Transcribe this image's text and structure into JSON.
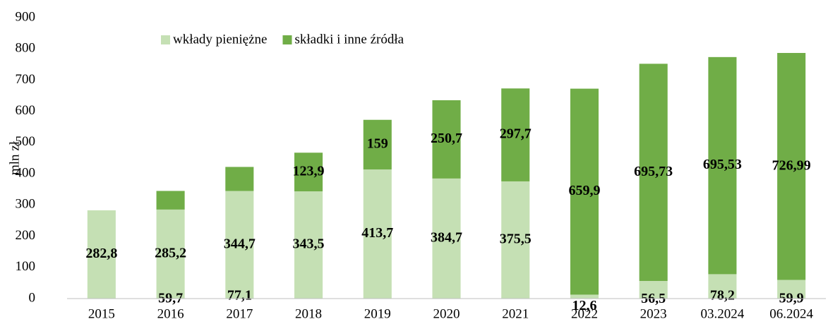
{
  "chart_data": {
    "type": "stacked_bar",
    "y_label": "mln zł",
    "categories": [
      "2015",
      "2016",
      "2017",
      "2018",
      "2019",
      "2020",
      "2021",
      "2022",
      "2023",
      "03.2024",
      "06.2024"
    ],
    "series": [
      {
        "name": "wkłady pieniężne",
        "color": "#c5e0b4",
        "values": [
          282.8,
          285.2,
          344.7,
          343.5,
          413.7,
          384.7,
          375.5,
          12.6,
          56.5,
          78.2,
          59.9
        ],
        "value_labels": [
          "282,8",
          "285,2",
          "344,7",
          "343,5",
          "413,7",
          "384,7",
          "375,5",
          "12,6",
          "56,5",
          "78,2",
          "59,9"
        ]
      },
      {
        "name": "składki i inne źródła",
        "color": "#70ad47",
        "values": [
          null,
          59.7,
          77.1,
          123.9,
          159,
          250.7,
          297.7,
          659.9,
          695.73,
          695.53,
          726.99
        ],
        "value_labels": [
          null,
          "59,7",
          "77,1",
          "123,9",
          "159",
          "250,7",
          "297,7",
          "659,9",
          "695,73",
          "695,53",
          "726,99"
        ]
      }
    ],
    "ylim": [
      0,
      900
    ],
    "yticks": [
      0,
      100,
      200,
      300,
      400,
      500,
      600,
      700,
      800,
      900
    ],
    "grid": false,
    "legend": "top-left"
  }
}
